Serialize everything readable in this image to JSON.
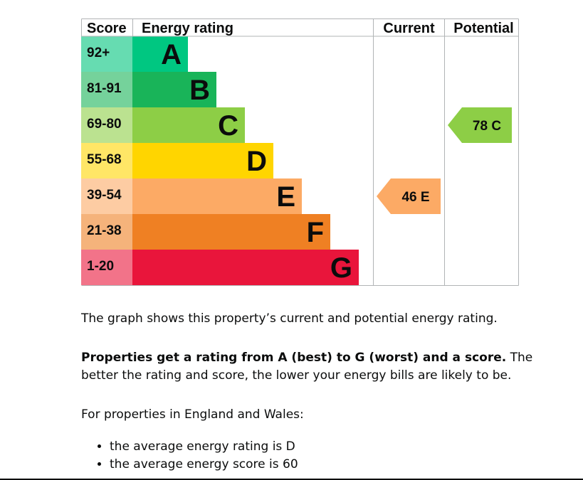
{
  "chart_data": {
    "type": "epc-rating-chart",
    "headers": {
      "score": "Score",
      "energy_rating": "Energy rating",
      "current": "Current",
      "potential": "Potential"
    },
    "bands": [
      {
        "letter": "A",
        "range": "92+",
        "min": 92,
        "max": 100,
        "color": "#00c781",
        "score_bg": "#66dcb1"
      },
      {
        "letter": "B",
        "range": "81-91",
        "min": 81,
        "max": 91,
        "color": "#19b459",
        "score_bg": "#75d29b"
      },
      {
        "letter": "C",
        "range": "69-80",
        "min": 69,
        "max": 80,
        "color": "#8dce46",
        "score_bg": "#bbe290"
      },
      {
        "letter": "D",
        "range": "55-68",
        "min": 55,
        "max": 68,
        "color": "#ffd500",
        "score_bg": "#ffe666"
      },
      {
        "letter": "E",
        "range": "39-54",
        "min": 39,
        "max": 54,
        "color": "#fcaa65",
        "score_bg": "#fdcca3"
      },
      {
        "letter": "F",
        "range": "21-38",
        "min": 21,
        "max": 38,
        "color": "#ef8023",
        "score_bg": "#f5b37b"
      },
      {
        "letter": "G",
        "range": "1-20",
        "min": 1,
        "max": 20,
        "color": "#e9153b",
        "score_bg": "#f27389"
      }
    ],
    "current": {
      "score": 46,
      "letter": "E",
      "label": "46  E"
    },
    "potential": {
      "score": 78,
      "letter": "C",
      "label": "78  C"
    }
  },
  "text": {
    "graph_description": "The graph shows this property’s current and potential energy rating.",
    "rating_bold": "Properties get a rating from A (best) to G (worst) and a score.",
    "rating_rest": " The better the rating and score, the lower your energy bills are likely to be.",
    "region_intro": "For properties in England and Wales:",
    "bullets": [
      "the average energy rating is D",
      "the average energy score is 60"
    ]
  }
}
